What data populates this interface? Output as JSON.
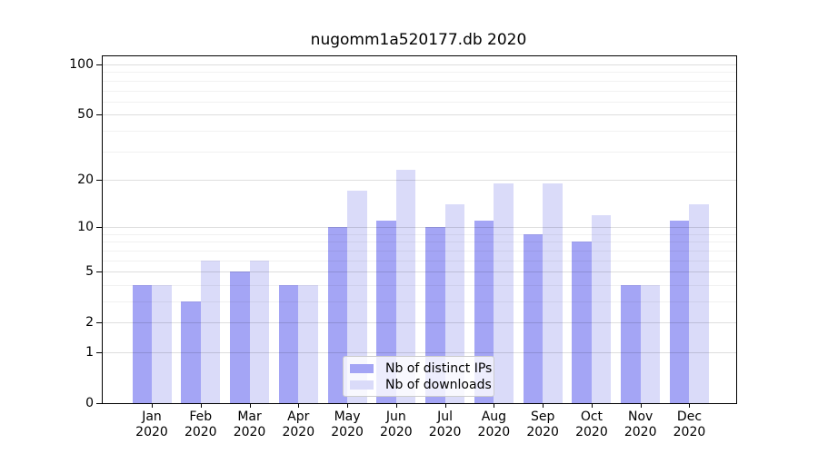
{
  "chart_data": {
    "type": "bar",
    "title": "nugomm1a520177.db 2020",
    "categories": [
      "Jan",
      "Feb",
      "Mar",
      "Apr",
      "May",
      "Jun",
      "Jul",
      "Aug",
      "Sep",
      "Oct",
      "Nov",
      "Dec"
    ],
    "year_label": "2020",
    "series": [
      {
        "name": "Nb of distinct IPs",
        "color": "#a4a5f5",
        "values": [
          4,
          3,
          5,
          4,
          10,
          11,
          10,
          11,
          9,
          8,
          4,
          11
        ]
      },
      {
        "name": "Nb of downloads",
        "color": "#dadbf9",
        "values": [
          4,
          6,
          6,
          4,
          17,
          23,
          14,
          19,
          19,
          12,
          4,
          14
        ]
      }
    ],
    "xlabel": "",
    "ylabel": "",
    "y_axis": {
      "scale": "log1p",
      "ticks": [
        0,
        1,
        2,
        5,
        10,
        20,
        50,
        100
      ],
      "minor_ticks": [
        3,
        4,
        6,
        7,
        8,
        9,
        30,
        40,
        60,
        70,
        80,
        90
      ],
      "ylim": [
        0,
        112
      ]
    },
    "grid": true,
    "legend": {
      "position": "lower center",
      "entries": [
        "Nb of distinct IPs",
        "Nb of downloads"
      ]
    }
  }
}
